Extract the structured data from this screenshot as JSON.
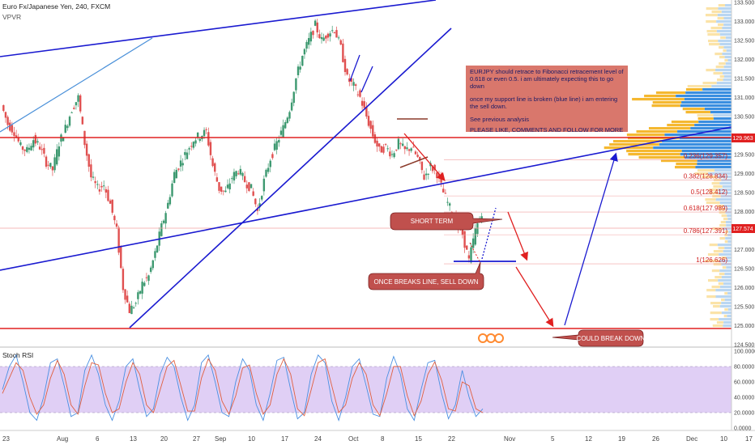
{
  "header": {
    "symbol": "Euro Fx/Japanese Yen, 240, FXCM",
    "indicator": "VPVR"
  },
  "rsi_panel": {
    "label": "Stoch RSI"
  },
  "note": {
    "lines": [
      "EURJPY should retrace to Fibonacci retracement level of 0.618 or even 0.5. i am ultimately expecting this to go down",
      "once my support line is broken (blue line) i am entering the sell down.",
      "See previous analysis",
      "PLEASE LIKE, COMMENTS AND FOLLOW FOR MORE"
    ]
  },
  "bubbles": {
    "short_term": "SHORT TERM",
    "once_breaks": "ONCE BREAKS LINE, SELL DOWN",
    "could_break": "COULD BREAK DOWN"
  },
  "price_badges": {
    "upper": "129.963",
    "current": "127.574"
  },
  "fib_labels": [
    {
      "text": "0.236(129.357)",
      "price": 129.357
    },
    {
      "text": "0.382(128.834)",
      "price": 128.834
    },
    {
      "text": "0.5(128.412)",
      "price": 128.412
    },
    {
      "text": "0.618(127.989)",
      "price": 127.989
    },
    {
      "text": "0.786(127.391)",
      "price": 127.391
    },
    {
      "text": "1(126.626)",
      "price": 126.626
    }
  ],
  "colors": {
    "up": "#3d9970",
    "down": "#e05050",
    "trend": "#1a1ad0",
    "light_trend": "#4a90d9",
    "support": "#e02020",
    "rsi_fill": "#e0cff5",
    "rsi_k": "#4a90e2",
    "rsi_d": "#e06040",
    "note_bg": "#d9776c",
    "bubble_bg": "#c0504d"
  },
  "chart_data": [
    {
      "type": "line",
      "title": "Euro Fx/Japanese Yen, 240, FXCM",
      "ylim": [
        124.5,
        133.5
      ],
      "y_ticks": [
        "133.500",
        "133.000",
        "132.500",
        "132.000",
        "131.500",
        "131.000",
        "130.500",
        "130.000",
        "129.500",
        "129.000",
        "128.500",
        "128.000",
        "127.500",
        "127.000",
        "126.500",
        "126.000",
        "125.500",
        "125.000",
        "124.500"
      ],
      "x_ticks": [
        "23",
        "Aug",
        "6",
        "13",
        "20",
        "27",
        "Sep",
        "10",
        "17",
        "24",
        "Oct",
        "8",
        "15",
        "22",
        "Nov",
        "5",
        "12",
        "19",
        "26",
        "Dec",
        "10",
        "17"
      ],
      "series": [
        {
          "values": [
            130.8,
            130.3,
            130.1,
            129.7,
            129.6,
            129.9,
            129.7,
            129.3,
            129.1,
            129.8,
            130.2,
            130.7,
            131.0,
            129.8,
            128.9,
            128.6,
            128.7,
            128.2,
            127.5,
            126.0,
            125.4,
            125.6,
            126.1,
            126.3,
            126.9,
            127.6,
            128.2,
            129.0,
            129.3,
            129.6,
            129.9,
            130.0,
            130.1,
            129.2,
            128.6,
            128.5,
            128.9,
            129.1,
            128.8,
            128.6,
            128.0,
            128.8,
            129.4,
            129.8,
            130.2,
            130.7,
            131.5,
            132.1,
            132.5,
            132.9,
            132.5,
            132.7,
            132.8,
            132.3,
            131.5,
            131.3,
            131.0,
            130.5,
            130.0,
            129.6,
            129.7,
            129.5,
            129.8,
            129.6,
            129.7,
            129.4,
            128.9,
            129.2,
            129.0,
            128.5,
            128.1,
            127.7,
            127.4,
            126.7,
            127.5,
            128.0
          ]
        }
      ]
    },
    {
      "type": "line",
      "title": "Stoch RSI",
      "ylim": [
        0,
        100
      ],
      "y_ticks": [
        "100.0000",
        "80.0000",
        "60.0000",
        "40.0000",
        "20.0000",
        "0.0000"
      ],
      "series": [
        {
          "values": [
            50,
            80,
            95,
            60,
            20,
            10,
            40,
            85,
            90,
            55,
            15,
            20,
            75,
            95,
            70,
            30,
            10,
            35,
            80,
            90,
            50,
            15,
            25,
            70,
            92,
            80,
            40,
            10,
            30,
            85,
            95,
            60,
            20,
            15,
            60,
            90,
            75,
            30,
            10,
            45,
            88,
            92,
            50,
            12,
            20,
            70,
            95,
            85,
            35,
            10,
            40,
            80,
            90,
            55,
            18,
            15,
            65,
            93,
            70,
            25,
            10,
            50,
            85,
            88,
            45,
            12,
            30,
            75,
            40,
            15,
            25
          ]
        },
        {
          "values": [
            45,
            65,
            85,
            75,
            40,
            18,
            30,
            65,
            88,
            70,
            30,
            18,
            55,
            85,
            82,
            45,
            20,
            25,
            60,
            85,
            70,
            30,
            20,
            50,
            80,
            88,
            55,
            22,
            22,
            65,
            90,
            75,
            35,
            18,
            42,
            78,
            82,
            45,
            18,
            30,
            70,
            90,
            70,
            25,
            16,
            50,
            85,
            90,
            55,
            20,
            30,
            65,
            85,
            70,
            30,
            16,
            45,
            80,
            80,
            42,
            16,
            35,
            70,
            86,
            62,
            25,
            22,
            60,
            55,
            25,
            20
          ]
        }
      ]
    }
  ]
}
